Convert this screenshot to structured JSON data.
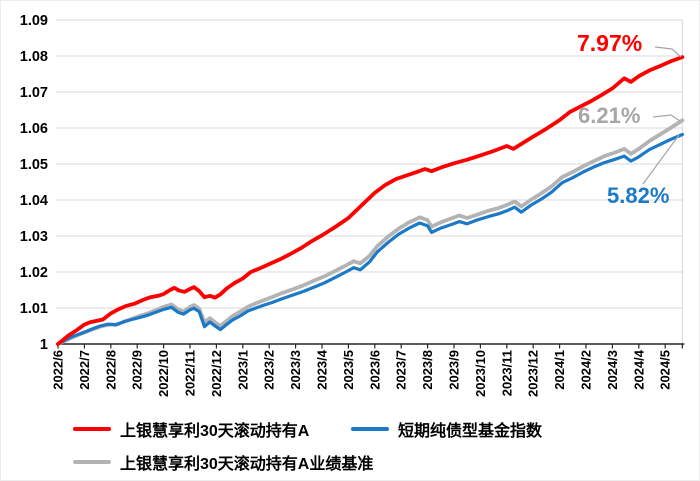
{
  "chart_data": {
    "type": "line",
    "title": "",
    "xlabel": "",
    "ylabel": "",
    "ylim": [
      1.0,
      1.09
    ],
    "grid": true,
    "y_axis": {
      "tick_values": [
        1.09,
        1.08,
        1.07,
        1.06,
        1.05,
        1.04,
        1.03,
        1.02,
        1.01,
        1
      ],
      "tick_labels": [
        "1.09",
        "1.08",
        "1.07",
        "1.06",
        "1.05",
        "1.04",
        "1.03",
        "1.02",
        "1.01",
        "1"
      ]
    },
    "x_axis": {
      "categories": [
        "2022/6",
        "2022/7",
        "2022/8",
        "2022/9",
        "2022/10",
        "2022/11",
        "2022/12",
        "2023/1",
        "2023/2",
        "2023/3",
        "2023/4",
        "2023/5",
        "2023/6",
        "2023/7",
        "2023/8",
        "2023/9",
        "2023/10",
        "2023/11",
        "2023/12",
        "2024/1",
        "2024/2",
        "2024/3",
        "2024/4",
        "2024/5"
      ],
      "x_end": 23.65
    },
    "series": [
      {
        "name": "上银慧享利30天滚动持有A业绩基准",
        "color": "#b3b3b3",
        "width": 3.8,
        "end_value_pct": "6.21%",
        "points": [
          [
            0,
            1.0
          ],
          [
            0.3,
            1.001
          ],
          [
            0.6,
            1.002
          ],
          [
            1,
            1.0032
          ],
          [
            1.3,
            1.004
          ],
          [
            1.6,
            1.0048
          ],
          [
            1.9,
            1.0054
          ],
          [
            2.2,
            1.0053
          ],
          [
            2.5,
            1.0062
          ],
          [
            2.8,
            1.007
          ],
          [
            3.1,
            1.0078
          ],
          [
            3.4,
            1.0085
          ],
          [
            3.7,
            1.0094
          ],
          [
            4,
            1.0103
          ],
          [
            4.3,
            1.011
          ],
          [
            4.55,
            1.0096
          ],
          [
            4.75,
            1.009
          ],
          [
            5,
            1.0103
          ],
          [
            5.15,
            1.0108
          ],
          [
            5.35,
            1.0098
          ],
          [
            5.55,
            1.006
          ],
          [
            5.75,
            1.0072
          ],
          [
            5.95,
            1.006
          ],
          [
            6.15,
            1.005
          ],
          [
            6.35,
            1.0062
          ],
          [
            6.6,
            1.0077
          ],
          [
            6.9,
            1.009
          ],
          [
            7.2,
            1.0104
          ],
          [
            7.5,
            1.0113
          ],
          [
            7.8,
            1.0122
          ],
          [
            8.1,
            1.013
          ],
          [
            8.5,
            1.0142
          ],
          [
            8.9,
            1.0152
          ],
          [
            9.3,
            1.0163
          ],
          [
            9.7,
            1.0176
          ],
          [
            10.1,
            1.0188
          ],
          [
            10.5,
            1.0203
          ],
          [
            10.9,
            1.0218
          ],
          [
            11.2,
            1.023
          ],
          [
            11.45,
            1.0224
          ],
          [
            11.8,
            1.0245
          ],
          [
            12.1,
            1.0272
          ],
          [
            12.5,
            1.0298
          ],
          [
            12.9,
            1.032
          ],
          [
            13.3,
            1.0338
          ],
          [
            13.7,
            1.0352
          ],
          [
            14,
            1.0344
          ],
          [
            14.15,
            1.0326
          ],
          [
            14.5,
            1.0338
          ],
          [
            14.9,
            1.0349
          ],
          [
            15.2,
            1.0357
          ],
          [
            15.5,
            1.035
          ],
          [
            15.9,
            1.036
          ],
          [
            16.3,
            1.037
          ],
          [
            16.7,
            1.0378
          ],
          [
            17,
            1.0386
          ],
          [
            17.3,
            1.0396
          ],
          [
            17.55,
            1.0382
          ],
          [
            17.9,
            1.04
          ],
          [
            18.3,
            1.0418
          ],
          [
            18.7,
            1.0438
          ],
          [
            19.1,
            1.0464
          ],
          [
            19.5,
            1.0478
          ],
          [
            19.9,
            1.0494
          ],
          [
            20.3,
            1.0508
          ],
          [
            20.7,
            1.0522
          ],
          [
            21.1,
            1.0532
          ],
          [
            21.45,
            1.0542
          ],
          [
            21.7,
            1.0528
          ],
          [
            22,
            1.0542
          ],
          [
            22.4,
            1.0564
          ],
          [
            22.8,
            1.0582
          ],
          [
            23.2,
            1.06
          ],
          [
            23.65,
            1.0621
          ]
        ]
      },
      {
        "name": "短期纯债型基金指数",
        "color": "#1b79c8",
        "width": 3.2,
        "end_value_pct": "5.82%",
        "points": [
          [
            0,
            1.0
          ],
          [
            0.3,
            1.0012
          ],
          [
            0.6,
            1.0022
          ],
          [
            1,
            1.0033
          ],
          [
            1.3,
            1.0042
          ],
          [
            1.6,
            1.005
          ],
          [
            1.9,
            1.0055
          ],
          [
            2.2,
            1.0054
          ],
          [
            2.5,
            1.0062
          ],
          [
            2.8,
            1.0068
          ],
          [
            3.1,
            1.0074
          ],
          [
            3.4,
            1.008
          ],
          [
            3.7,
            1.0088
          ],
          [
            4,
            1.0096
          ],
          [
            4.3,
            1.0102
          ],
          [
            4.55,
            1.0088
          ],
          [
            4.75,
            1.0083
          ],
          [
            5,
            1.0095
          ],
          [
            5.15,
            1.0099
          ],
          [
            5.35,
            1.009
          ],
          [
            5.55,
            1.0048
          ],
          [
            5.75,
            1.0061
          ],
          [
            5.95,
            1.005
          ],
          [
            6.15,
            1.004
          ],
          [
            6.35,
            1.0052
          ],
          [
            6.6,
            1.0066
          ],
          [
            6.9,
            1.0078
          ],
          [
            7.2,
            1.0092
          ],
          [
            7.5,
            1.01
          ],
          [
            7.8,
            1.0108
          ],
          [
            8.1,
            1.0115
          ],
          [
            8.5,
            1.0126
          ],
          [
            8.9,
            1.0136
          ],
          [
            9.3,
            1.0146
          ],
          [
            9.7,
            1.0158
          ],
          [
            10.1,
            1.017
          ],
          [
            10.5,
            1.0185
          ],
          [
            10.9,
            1.02
          ],
          [
            11.2,
            1.0212
          ],
          [
            11.45,
            1.0206
          ],
          [
            11.8,
            1.0228
          ],
          [
            12.1,
            1.0256
          ],
          [
            12.5,
            1.0282
          ],
          [
            12.9,
            1.0305
          ],
          [
            13.3,
            1.0322
          ],
          [
            13.7,
            1.0336
          ],
          [
            14,
            1.0328
          ],
          [
            14.15,
            1.031
          ],
          [
            14.5,
            1.0322
          ],
          [
            14.9,
            1.0332
          ],
          [
            15.2,
            1.034
          ],
          [
            15.5,
            1.0334
          ],
          [
            15.9,
            1.0345
          ],
          [
            16.3,
            1.0354
          ],
          [
            16.7,
            1.0362
          ],
          [
            17,
            1.037
          ],
          [
            17.3,
            1.038
          ],
          [
            17.55,
            1.0366
          ],
          [
            17.9,
            1.0385
          ],
          [
            18.3,
            1.0402
          ],
          [
            18.7,
            1.0422
          ],
          [
            19.1,
            1.0448
          ],
          [
            19.5,
            1.0462
          ],
          [
            19.9,
            1.0478
          ],
          [
            20.3,
            1.0492
          ],
          [
            20.7,
            1.0504
          ],
          [
            21.1,
            1.0513
          ],
          [
            21.45,
            1.0522
          ],
          [
            21.7,
            1.0508
          ],
          [
            22,
            1.052
          ],
          [
            22.4,
            1.054
          ],
          [
            22.8,
            1.0554
          ],
          [
            23.2,
            1.0568
          ],
          [
            23.65,
            1.0582
          ]
        ]
      },
      {
        "name": "上银慧享利30天滚动持有A",
        "color": "#fe0000",
        "width": 3.8,
        "end_value_pct": "7.97%",
        "points": [
          [
            0,
            1.0
          ],
          [
            0.2,
            1.0012
          ],
          [
            0.4,
            1.0024
          ],
          [
            0.7,
            1.0038
          ],
          [
            1,
            1.0054
          ],
          [
            1.2,
            1.006
          ],
          [
            1.5,
            1.0065
          ],
          [
            1.7,
            1.0068
          ],
          [
            2,
            1.0085
          ],
          [
            2.3,
            1.0097
          ],
          [
            2.6,
            1.0106
          ],
          [
            2.9,
            1.0112
          ],
          [
            3.2,
            1.0122
          ],
          [
            3.5,
            1.013
          ],
          [
            3.8,
            1.0134
          ],
          [
            4,
            1.0139
          ],
          [
            4.2,
            1.0148
          ],
          [
            4.4,
            1.0156
          ],
          [
            4.6,
            1.0148
          ],
          [
            4.8,
            1.0145
          ],
          [
            5,
            1.0153
          ],
          [
            5.15,
            1.0158
          ],
          [
            5.35,
            1.0147
          ],
          [
            5.55,
            1.013
          ],
          [
            5.75,
            1.0134
          ],
          [
            5.95,
            1.0129
          ],
          [
            6.15,
            1.0138
          ],
          [
            6.4,
            1.0155
          ],
          [
            6.7,
            1.017
          ],
          [
            7,
            1.0182
          ],
          [
            7.3,
            1.02
          ],
          [
            7.7,
            1.0212
          ],
          [
            8,
            1.0222
          ],
          [
            8.4,
            1.0235
          ],
          [
            8.8,
            1.025
          ],
          [
            9.2,
            1.0266
          ],
          [
            9.6,
            1.0285
          ],
          [
            10,
            1.0302
          ],
          [
            10.5,
            1.0325
          ],
          [
            11,
            1.035
          ],
          [
            11.5,
            1.0385
          ],
          [
            12,
            1.042
          ],
          [
            12.4,
            1.0442
          ],
          [
            12.8,
            1.0458
          ],
          [
            13.2,
            1.0468
          ],
          [
            13.6,
            1.0478
          ],
          [
            13.9,
            1.0486
          ],
          [
            14.15,
            1.048
          ],
          [
            14.5,
            1.049
          ],
          [
            15,
            1.0502
          ],
          [
            15.5,
            1.0512
          ],
          [
            16,
            1.0524
          ],
          [
            16.5,
            1.0536
          ],
          [
            17,
            1.055
          ],
          [
            17.25,
            1.0542
          ],
          [
            17.6,
            1.0558
          ],
          [
            18,
            1.0576
          ],
          [
            18.5,
            1.0598
          ],
          [
            19,
            1.0622
          ],
          [
            19.4,
            1.0645
          ],
          [
            19.8,
            1.066
          ],
          [
            20.2,
            1.0675
          ],
          [
            20.6,
            1.0692
          ],
          [
            21,
            1.071
          ],
          [
            21.45,
            1.0738
          ],
          [
            21.7,
            1.0728
          ],
          [
            22,
            1.0744
          ],
          [
            22.4,
            1.076
          ],
          [
            22.8,
            1.0772
          ],
          [
            23.2,
            1.0785
          ],
          [
            23.65,
            1.0797
          ]
        ]
      }
    ],
    "annotations": [
      {
        "id": "red",
        "text": "7.97%",
        "color": "#fe0000",
        "leader": [
          [
            654,
            46
          ],
          [
            671,
            48
          ],
          [
            680,
            56
          ]
        ]
      },
      {
        "id": "gray",
        "text": "6.21%",
        "color": "#a6a6a6",
        "leader": [
          [
            652,
            116
          ],
          [
            670,
            114
          ],
          [
            679,
            120
          ]
        ]
      },
      {
        "id": "blue",
        "text": "5.82%",
        "color": "#1b79c8",
        "leader": [
          [
            642,
            183
          ],
          [
            678,
            134
          ]
        ]
      }
    ],
    "legend": {
      "position": "bottom",
      "items": [
        {
          "label": "上银慧享利30天滚动持有A",
          "color": "#fe0000"
        },
        {
          "label": "短期纯债型基金指数",
          "color": "#1b79c8"
        },
        {
          "label": "上银慧享利30天滚动持有A业绩基准",
          "color": "#b3b3b3"
        }
      ]
    },
    "style": {
      "gridline_color": "#d9d9d9",
      "axis_color": "#262626",
      "leader_color": "#a6a6a6",
      "tick_label_color": "#000000"
    }
  }
}
